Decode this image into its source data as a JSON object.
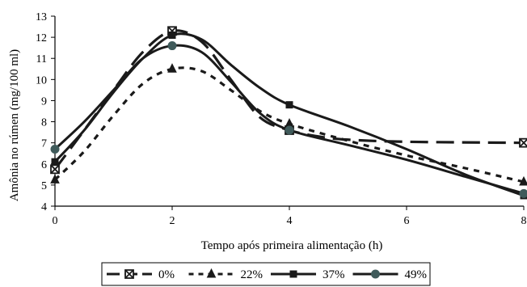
{
  "chart_data": {
    "type": "line",
    "title": "",
    "xlabel": "Tempo após primeira alimentação (h)",
    "ylabel": "Amônia no rúmen (mg/100 ml)",
    "xlim": [
      0,
      8
    ],
    "ylim": [
      4,
      13
    ],
    "xticks": [
      "0",
      "2",
      "4",
      "6",
      "8"
    ],
    "yticks": [
      "4",
      "5",
      "6",
      "7",
      "8",
      "9",
      "10",
      "11",
      "12",
      "13"
    ],
    "grid": false,
    "legend_position": "bottom",
    "series": [
      {
        "name": "0%",
        "color": "#1a1a1a",
        "marker": "x-square",
        "dash": "long-dash",
        "x": [
          0,
          2,
          4,
          8
        ],
        "y": [
          5.75,
          12.3,
          7.6,
          7.0
        ],
        "curve": [
          [
            0,
            5.75
          ],
          [
            0.5,
            7.6
          ],
          [
            1,
            9.5
          ],
          [
            1.5,
            11.3
          ],
          [
            2,
            12.3
          ],
          [
            2.5,
            11.8
          ],
          [
            3,
            10.0
          ],
          [
            3.5,
            8.2
          ],
          [
            4,
            7.6
          ],
          [
            4.5,
            7.3
          ],
          [
            5,
            7.15
          ],
          [
            6,
            7.05
          ],
          [
            8,
            7.0
          ]
        ]
      },
      {
        "name": "22%",
        "color": "#1a1a1a",
        "marker": "triangle",
        "dash": "dotted",
        "x": [
          0,
          2,
          4,
          8
        ],
        "y": [
          5.25,
          10.5,
          7.9,
          5.15
        ],
        "curve": [
          [
            0,
            5.25
          ],
          [
            0.5,
            6.6
          ],
          [
            1,
            8.3
          ],
          [
            1.5,
            9.8
          ],
          [
            2,
            10.5
          ],
          [
            2.5,
            10.4
          ],
          [
            3,
            9.5
          ],
          [
            3.5,
            8.5
          ],
          [
            4,
            7.9
          ],
          [
            5,
            7.1
          ],
          [
            6,
            6.4
          ],
          [
            7,
            5.8
          ],
          [
            8,
            5.15
          ]
        ]
      },
      {
        "name": "37%",
        "color": "#1a1a1a",
        "marker": "square",
        "dash": "solid",
        "x": [
          0,
          2,
          4,
          8
        ],
        "y": [
          6.1,
          12.1,
          8.8,
          4.5
        ],
        "curve": [
          [
            0,
            6.1
          ],
          [
            0.5,
            7.6
          ],
          [
            1,
            9.4
          ],
          [
            1.5,
            11.0
          ],
          [
            2,
            12.1
          ],
          [
            2.5,
            11.9
          ],
          [
            3,
            10.7
          ],
          [
            3.5,
            9.6
          ],
          [
            4,
            8.8
          ],
          [
            5,
            7.8
          ],
          [
            6,
            6.7
          ],
          [
            7,
            5.5
          ],
          [
            8,
            4.5
          ]
        ]
      },
      {
        "name": "49%",
        "color": "#1a1a1a",
        "marker": "circle",
        "dash": "solid",
        "x": [
          0,
          2,
          4,
          8
        ],
        "y": [
          6.7,
          11.6,
          7.6,
          4.6
        ],
        "curve": [
          [
            0,
            6.7
          ],
          [
            0.5,
            8.0
          ],
          [
            1,
            9.5
          ],
          [
            1.5,
            11.0
          ],
          [
            2,
            11.6
          ],
          [
            2.5,
            11.3
          ],
          [
            3,
            9.9
          ],
          [
            3.5,
            8.4
          ],
          [
            4,
            7.6
          ],
          [
            5,
            6.9
          ],
          [
            6,
            6.2
          ],
          [
            7,
            5.4
          ],
          [
            8,
            4.6
          ]
        ]
      }
    ],
    "marker_fill_49": "#3f5a5a"
  }
}
